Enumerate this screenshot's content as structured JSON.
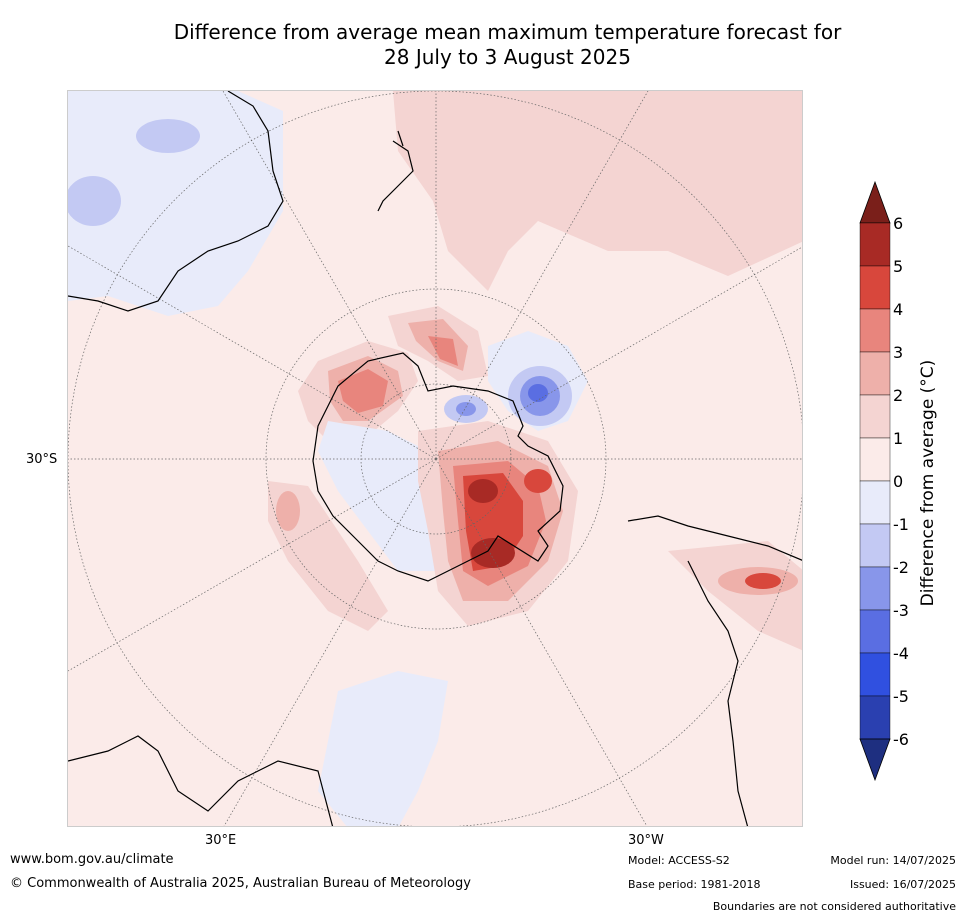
{
  "title": {
    "line1": "Difference from average mean maximum temperature forecast for",
    "line2": "28 July to 3 August 2025"
  },
  "map": {
    "projection": "south polar stereographic",
    "lat_label": "30°S",
    "lon_label_left": "30°E",
    "lon_label_right": "30°W"
  },
  "colorbar": {
    "title": "Difference from average (°C)",
    "ticks": [
      "6",
      "5",
      "4",
      "3",
      "2",
      "1",
      "0",
      "-1",
      "-2",
      "-3",
      "-4",
      "-5",
      "-6"
    ],
    "colors": {
      "above6": "#7a1f1a",
      "5to6": "#a82a25",
      "4to5": "#d8473c",
      "3to4": "#e8857d",
      "2to3": "#eeb0aa",
      "1to2": "#f4d4d2",
      "0to1": "#fbebe9",
      "m1to0": "#e8ebfa",
      "m2tom1": "#c3c9f3",
      "m3tom2": "#8896ea",
      "m4tom3": "#5a6ee2",
      "m5tom4": "#3050e0",
      "m6tom5": "#2a40b0",
      "below_m6": "#1e2f80"
    }
  },
  "footer": {
    "website": "www.bom.gov.au/climate",
    "copyright": "© Commonwealth of Australia 2025, Australian Bureau of Meteorology",
    "model": "Model: ACCESS-S2",
    "base_period": "Base period: 1981-2018",
    "model_run": "Model run: 14/07/2025",
    "issued": "Issued: 16/07/2025",
    "disclaimer": "Boundaries are not considered authoritative"
  }
}
